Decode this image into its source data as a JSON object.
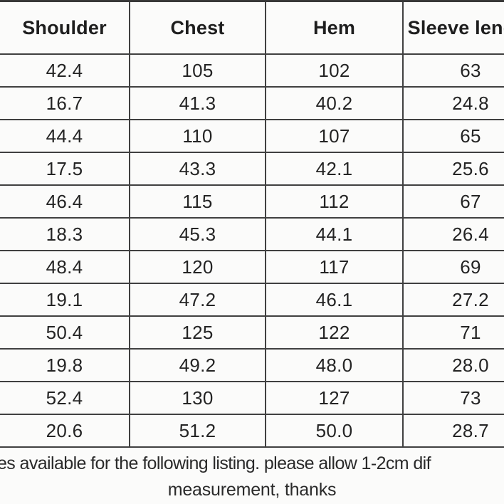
{
  "table": {
    "columns": [
      {
        "key": "shoulder",
        "label": "Shoulder"
      },
      {
        "key": "chest",
        "label": "Chest"
      },
      {
        "key": "hem",
        "label": "Hem"
      },
      {
        "key": "sleeve",
        "label": "Sleeve length"
      }
    ],
    "rows": [
      [
        "42.4",
        "105",
        "102",
        "63"
      ],
      [
        "16.7",
        "41.3",
        "40.2",
        "24.8"
      ],
      [
        "44.4",
        "110",
        "107",
        "65"
      ],
      [
        "17.5",
        "43.3",
        "42.1",
        "25.6"
      ],
      [
        "46.4",
        "115",
        "112",
        "67"
      ],
      [
        "18.3",
        "45.3",
        "44.1",
        "26.4"
      ],
      [
        "48.4",
        "120",
        "117",
        "69"
      ],
      [
        "19.1",
        "47.2",
        "46.1",
        "27.2"
      ],
      [
        "50.4",
        "125",
        "122",
        "71"
      ],
      [
        "19.8",
        "49.2",
        "48.0",
        "28.0"
      ],
      [
        "52.4",
        "130",
        "127",
        "73"
      ],
      [
        "20.6",
        "51.2",
        "50.0",
        "28.7"
      ]
    ]
  },
  "footer": {
    "line1": "es available for the following listing. please allow 1-2cm dif",
    "line2": "measurement, thanks"
  },
  "colors": {
    "background": "#fbfbfa",
    "text": "#242424",
    "border": "#404040"
  }
}
